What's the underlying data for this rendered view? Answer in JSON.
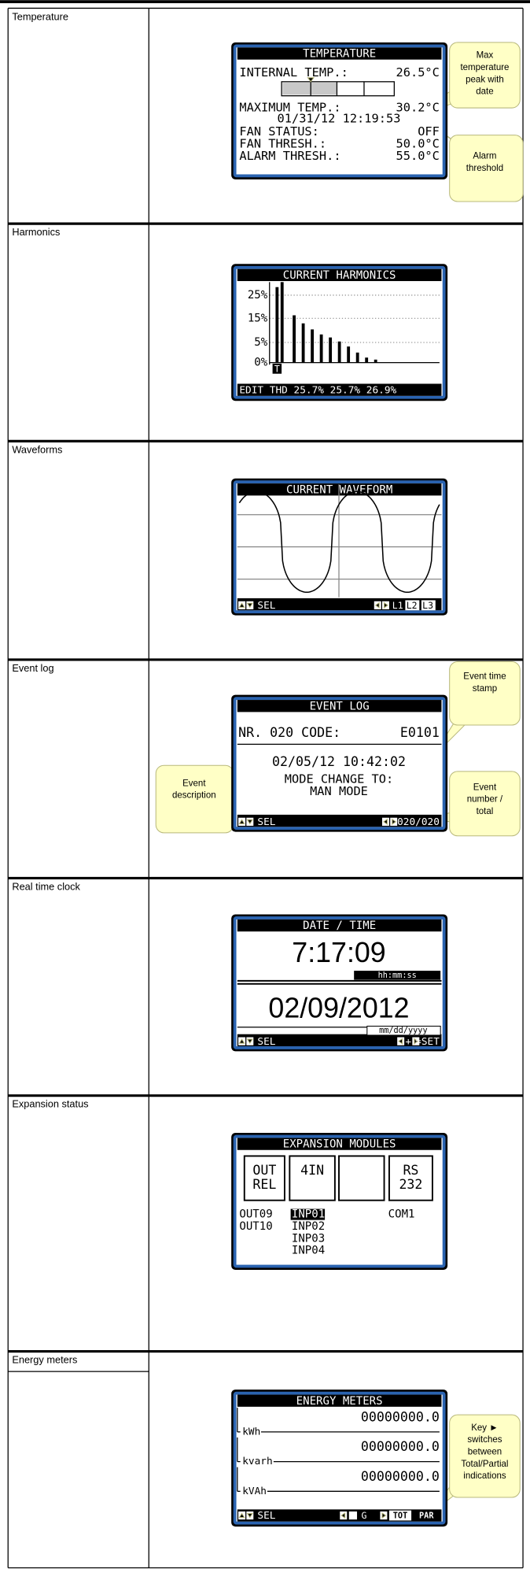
{
  "rows": [
    {
      "label": "Temperature",
      "screen": {
        "title": "TEMPERATURE",
        "lines": [
          [
            "INTERNAL TEMP.:",
            "26.5°C"
          ],
          [
            "MAXIMUM TEMP.:",
            "30.2°C"
          ],
          [
            "01/31/12 12:19:53"
          ],
          [
            "FAN STATUS:",
            "OFF"
          ],
          [
            "FAN THRESH.:",
            "50.0°C"
          ],
          [
            "ALARM THRESH.:",
            "55.0°C"
          ]
        ]
      },
      "callouts": [
        [
          "Max",
          "temperature",
          "peak with",
          "date"
        ],
        [
          "Alarm",
          "threshold"
        ]
      ]
    },
    {
      "label": "Harmonics",
      "screen": {
        "title": "CURRENT HARMONICS",
        "axis_labels": [
          "25%",
          "15%",
          "5%",
          "0%"
        ],
        "marker": "T",
        "footer": [
          "EDIT THD 25.7% 25.7% 26.9%"
        ]
      }
    },
    {
      "label": "Waveforms",
      "screen": {
        "title": "CURRENT WAVEFORM",
        "footer": [
          "SEL",
          "L1",
          "L2",
          "L3"
        ]
      }
    },
    {
      "label": "Event log",
      "screen": {
        "title": "EVENT LOG",
        "lines": [
          [
            "NR. 020  CODE:",
            "E0101"
          ],
          [
            "02/05/12 10:42:02"
          ],
          [
            "MODE CHANGE TO:"
          ],
          [
            "MAN MODE"
          ]
        ],
        "footer": [
          "SEL",
          "020/020"
        ]
      },
      "callouts": [
        [
          "Event time",
          "stamp"
        ],
        [
          "Event",
          "description"
        ],
        [
          "Event",
          "number /",
          "total"
        ]
      ]
    },
    {
      "label": "Real time clock",
      "screen": {
        "title": "DATE / TIME",
        "lines": [
          [
            "7:17:09",
            "hh:mm:ss"
          ],
          [
            "02/09/2012",
            "mm/dd/yyyy"
          ]
        ],
        "footer": [
          "SEL",
          "+",
          "=SET"
        ]
      }
    },
    {
      "label": "Expansion status",
      "screen": {
        "title": "EXPANSION MODULES",
        "modules": [
          [
            "OUT",
            "REL"
          ],
          [
            "4IN"
          ],
          [],
          [
            "RS",
            "232"
          ]
        ],
        "status": [
          [
            "OUT09",
            "OUT10"
          ],
          [
            "INP01",
            "INP02",
            "INP03",
            "INP04"
          ],
          [],
          [
            "COM1"
          ]
        ]
      }
    },
    {
      "label": "Energy meters",
      "screen": {
        "title": "ENERGY METERS",
        "meters": [
          [
            "00000000.0",
            "kWh"
          ],
          [
            "00000000.0",
            "kvarh"
          ],
          [
            "00000000.0",
            "kVAh"
          ]
        ],
        "footer": [
          "SEL",
          "G",
          "TOT",
          "PAR"
        ]
      },
      "callouts": [
        [
          "Key ►",
          "switches",
          "between",
          "Total/Partial",
          "indications"
        ]
      ]
    }
  ]
}
